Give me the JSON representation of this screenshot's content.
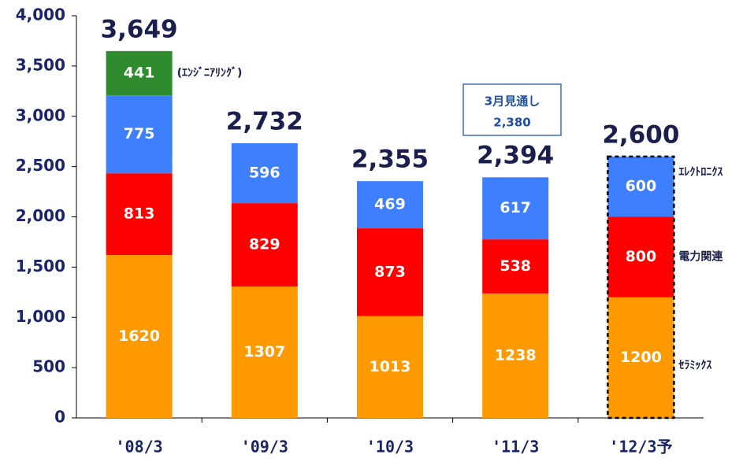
{
  "chart_data": {
    "type": "stacked_bar",
    "categories": [
      "'08/3",
      "'09/3",
      "'10/3",
      "'11/3",
      "'12/3予"
    ],
    "series": [
      {
        "name": "ｾﾗﾐｯｸｽ",
        "color": "#ff9900",
        "values": [
          1620,
          1307,
          1013,
          1238,
          1200
        ]
      },
      {
        "name": "電力関連",
        "color": "#ff0000",
        "values": [
          813,
          829,
          873,
          538,
          800
        ]
      },
      {
        "name": "ｴﾚｸﾄﾛﾆｸｽ",
        "color": "#3d7fff",
        "values": [
          775,
          596,
          469,
          617,
          600
        ]
      },
      {
        "name": "(ｴﾝｼﾞﾆｱﾘﾝｸﾞ)",
        "color": "#2e8b2e",
        "values": [
          441,
          null,
          null,
          null,
          null
        ]
      }
    ],
    "totals": {
      "values": [
        3649,
        2732,
        2355,
        2394,
        2600
      ],
      "value_labels": [
        "3,649",
        "2,732",
        "2,355",
        "2,394",
        "2,600"
      ]
    },
    "dashed": [
      false,
      false,
      false,
      false,
      true
    ],
    "annotation": {
      "lines": [
        "3月見通し",
        "2,380"
      ]
    },
    "ylim": [
      0,
      4000
    ],
    "yticks": [
      0,
      500,
      {
        "value": 1000,
        "label": "1,000"
      },
      {
        "value": 1500,
        "label": "1,500"
      },
      {
        "value": 2000,
        "label": "2,000"
      },
      {
        "value": 2500,
        "label": "2,500"
      },
      {
        "value": 3000,
        "label": "3,000"
      },
      {
        "value": 3500,
        "label": "3,500"
      },
      {
        "value": 4000,
        "label": "4,000"
      }
    ],
    "grid": false
  }
}
